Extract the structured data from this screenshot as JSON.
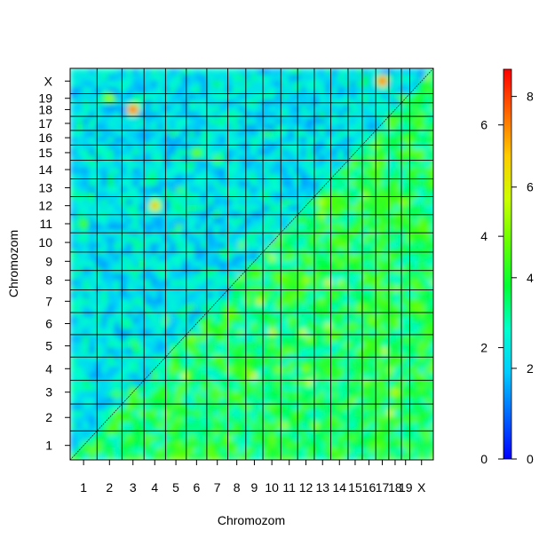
{
  "chart_data": {
    "type": "heatmap",
    "title": "",
    "xlabel": "Chromozom",
    "ylabel": "Chromozom",
    "categories": [
      "1",
      "2",
      "3",
      "4",
      "5",
      "6",
      "7",
      "8",
      "9",
      "10",
      "11",
      "12",
      "13",
      "14",
      "15",
      "16",
      "17",
      "18",
      "19",
      "X"
    ],
    "x_tick_labels": [
      "1",
      "2",
      "3",
      "4",
      "5",
      "6",
      "7",
      "8",
      "9",
      "10",
      "11",
      "12",
      "13",
      "14",
      "15",
      "16",
      "17",
      "18",
      "19",
      "X"
    ],
    "y_tick_labels": [
      "1",
      "2",
      "3",
      "4",
      "5",
      "6",
      "7",
      "8",
      "9",
      "10",
      "11",
      "12",
      "13",
      "14",
      "15",
      "16",
      "17",
      "18",
      "19",
      "X"
    ],
    "relative_sizes": [
      195,
      181,
      160,
      156,
      151,
      149,
      152,
      131,
      124,
      130,
      122,
      121,
      120,
      125,
      103,
      98,
      95,
      91,
      61,
      171
    ],
    "upper_triangle_scale": {
      "min": 0,
      "max": 7,
      "ticks": [
        0,
        2,
        4,
        6
      ]
    },
    "lower_triangle_scale": {
      "min": 0,
      "max": 8.6,
      "ticks": [
        0,
        2,
        4,
        6,
        8
      ]
    },
    "diagonal": "dashed line",
    "grid": true,
    "legend": "right",
    "colormap": [
      "#0000ff",
      "#0066ff",
      "#00ccff",
      "#00ffcc",
      "#00ff33",
      "#66ff00",
      "#ccff00",
      "#ffcc00",
      "#ff6600",
      "#ff0000"
    ],
    "hotspots_upper": [
      {
        "x": "17",
        "y": "X",
        "value": 6.5
      },
      {
        "x": "12",
        "y": "8",
        "value": 4.5
      },
      {
        "x": "12",
        "y": "4",
        "value": 4.3
      },
      {
        "x": "18",
        "y": "3",
        "value": 4.8
      },
      {
        "x": "17",
        "y": "10",
        "value": 3.8
      },
      {
        "x": "11",
        "y": "1",
        "value": 3.8
      }
    ],
    "hotspots_lower": [
      {
        "x": "3",
        "y": "18",
        "value": 8.2
      },
      {
        "x": "4",
        "y": "12",
        "value": 7.0
      },
      {
        "x": "2",
        "y": "19",
        "value": 5.5
      },
      {
        "x": "6",
        "y": "15",
        "value": 5.0
      },
      {
        "x": "1",
        "y": "11",
        "value": 4.6
      },
      {
        "x": "3",
        "y": "3",
        "value": 5.0
      }
    ]
  }
}
